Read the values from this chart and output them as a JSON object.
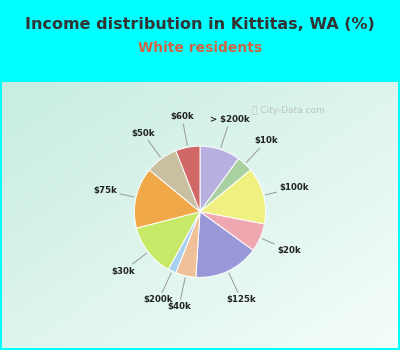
{
  "title": "Income distribution in Kittitas, WA (%)",
  "subtitle": "White residents",
  "title_color": "#333333",
  "subtitle_color": "#cc6644",
  "background_cyan": "#00ffff",
  "background_chart_tl": "#b8e8d8",
  "background_chart_br": "#e8f8f0",
  "labels": [
    "> $200k",
    "$10k",
    "$100k",
    "$20k",
    "$125k",
    "$40k",
    "$200k",
    "$30k",
    "$75k",
    "$50k",
    "$60k"
  ],
  "values": [
    10,
    4,
    14,
    7,
    16,
    5,
    2,
    13,
    15,
    8,
    6
  ],
  "colors": [
    "#b8b0e0",
    "#a8d0a0",
    "#f0f080",
    "#f0a8b0",
    "#9898d8",
    "#f0c098",
    "#a8d0f0",
    "#c8e868",
    "#f0a848",
    "#c8c0a0",
    "#d06868"
  ],
  "startangle": 90,
  "watermark": "City-Data.com"
}
